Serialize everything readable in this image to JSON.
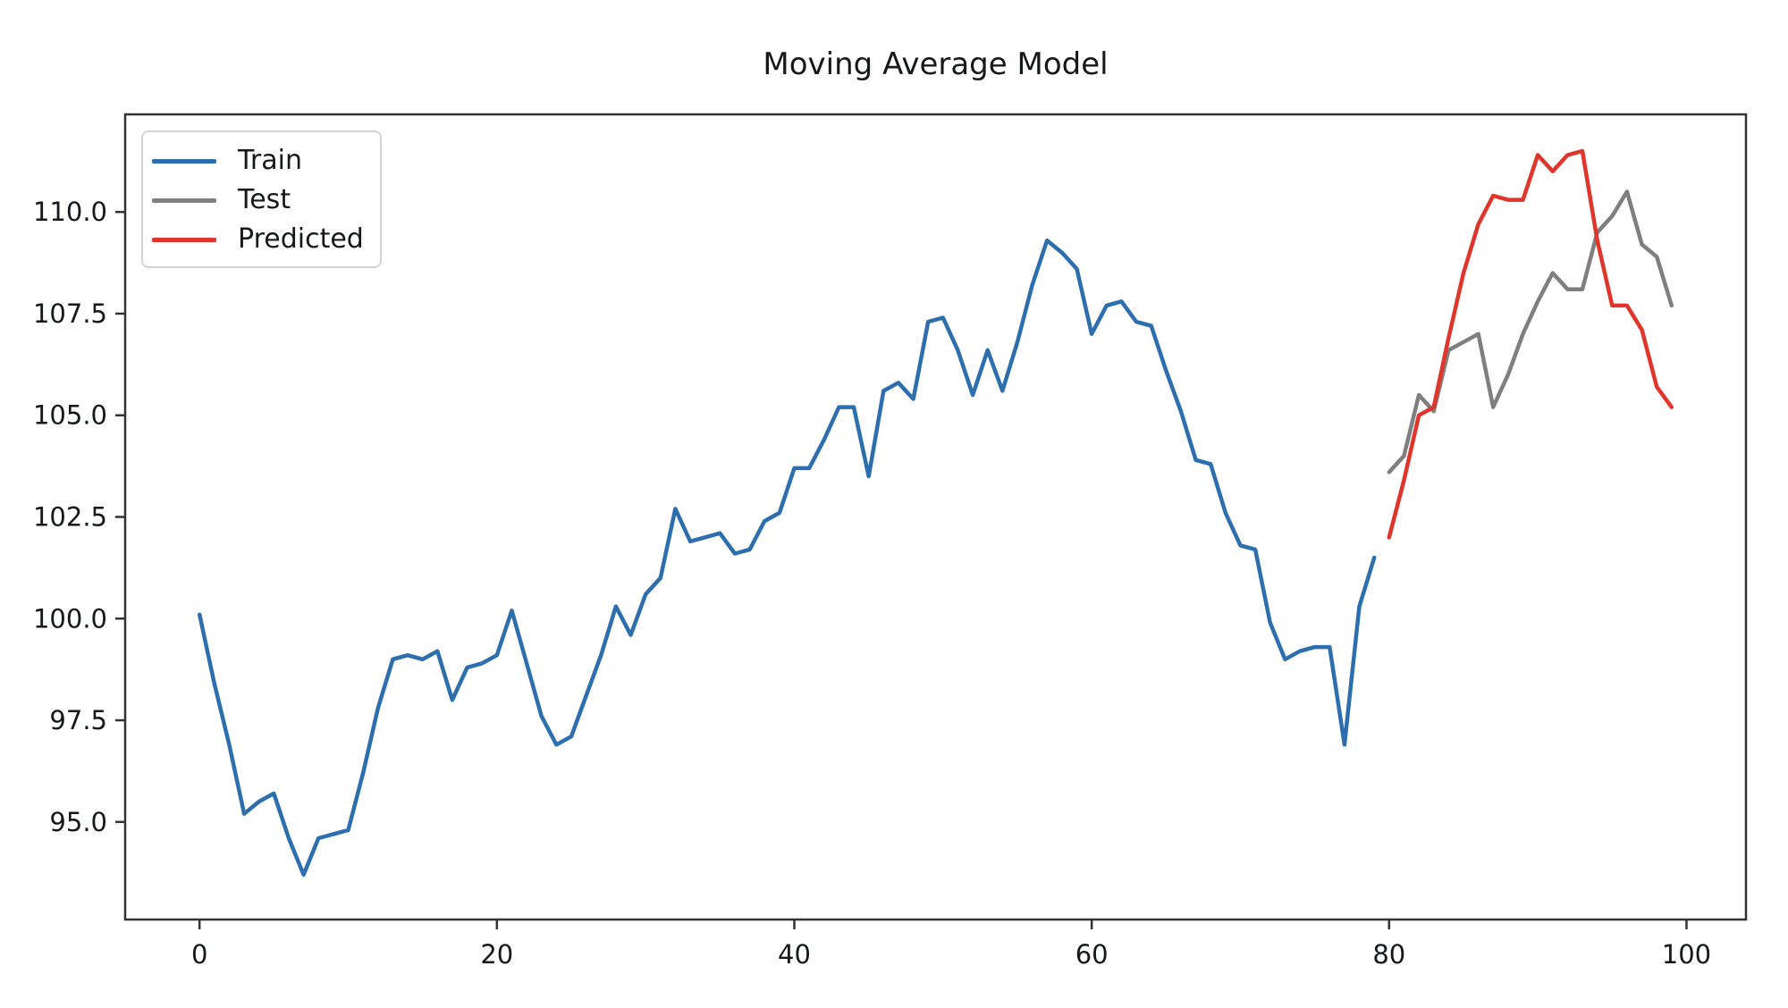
{
  "chart_data": {
    "type": "line",
    "title": "Moving Average Model",
    "xlabel": "",
    "ylabel": "",
    "grid": false,
    "legend_position": "upper left",
    "xlim": [
      -5,
      104
    ],
    "ylim": [
      92.6,
      112.4
    ],
    "xtick_values": [
      0,
      20,
      40,
      60,
      80,
      100
    ],
    "xtick_labels": [
      "0",
      "20",
      "40",
      "60",
      "80",
      "100"
    ],
    "ytick_values": [
      95.0,
      97.5,
      100.0,
      102.5,
      105.0,
      107.5,
      110.0
    ],
    "ytick_labels": [
      "95.0",
      "97.5",
      "100.0",
      "102.5",
      "105.0",
      "107.5",
      "110.0"
    ],
    "series": [
      {
        "name": "Train",
        "color": "#2d6fae",
        "x_start": 0,
        "values": [
          100.1,
          98.4,
          96.9,
          95.2,
          95.5,
          95.7,
          94.6,
          93.7,
          94.6,
          94.7,
          94.8,
          96.2,
          97.8,
          99.0,
          99.1,
          99.0,
          99.2,
          98.0,
          98.8,
          98.9,
          99.1,
          100.2,
          98.9,
          97.6,
          96.9,
          97.1,
          98.1,
          99.1,
          100.3,
          99.6,
          100.6,
          101.0,
          102.7,
          101.9,
          102.0,
          102.1,
          101.6,
          101.7,
          102.4,
          102.6,
          103.7,
          103.7,
          104.4,
          105.2,
          105.2,
          103.5,
          105.6,
          105.8,
          105.4,
          107.3,
          107.4,
          106.6,
          105.5,
          106.6,
          105.6,
          106.8,
          108.2,
          109.3,
          109.0,
          108.6,
          107.0,
          107.7,
          107.8,
          107.3,
          107.2,
          106.1,
          105.1,
          103.9,
          103.8,
          102.6,
          101.8,
          101.7,
          99.9,
          99.0,
          99.2,
          99.3,
          99.3,
          96.9,
          100.3,
          101.5
        ]
      },
      {
        "name": "Test",
        "color": "#7f7f7f",
        "x_start": 80,
        "values": [
          103.6,
          104.0,
          105.5,
          105.1,
          106.6,
          106.8,
          107.0,
          105.2,
          106.0,
          107.0,
          107.8,
          108.5,
          108.1,
          108.1,
          109.5,
          109.9,
          110.5,
          109.2,
          108.9,
          107.7
        ]
      },
      {
        "name": "Predicted",
        "color": "#e0352b",
        "x_start": 80,
        "values": [
          102.0,
          103.4,
          105.0,
          105.2,
          106.9,
          108.5,
          109.7,
          110.4,
          110.3,
          110.3,
          111.4,
          111.0,
          111.4,
          111.5,
          109.3,
          107.7,
          107.7,
          107.1,
          105.7,
          105.2
        ]
      }
    ]
  },
  "style": {
    "spine_color": "#333333",
    "tick_color": "#333333",
    "text_color": "#15191c",
    "line_width": 4.5
  }
}
